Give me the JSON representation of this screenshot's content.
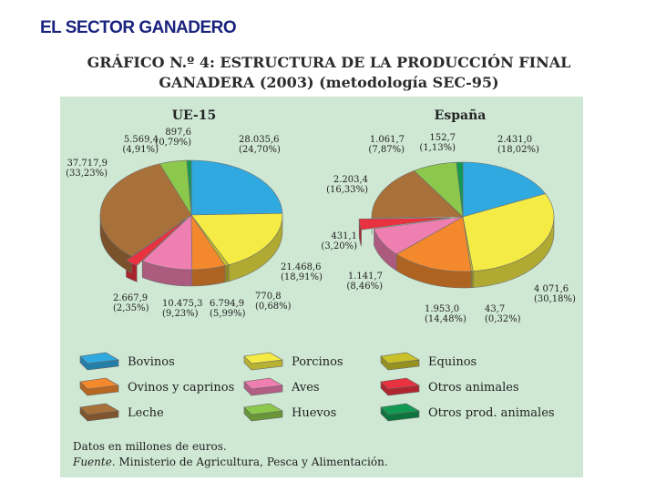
{
  "header": {
    "title": "EL SECTOR GANADERO"
  },
  "chart_data": {
    "type": "pie",
    "title_line1": "GRÁFICO N.º 4: ESTRUCTURA DE LA PRODUCCIÓN FINAL",
    "title_line2": "GANADERA (2003) (metodología SEC-95)",
    "categories": [
      "Bovinos",
      "Porcinos",
      "Equinos",
      "Ovinos y caprinos",
      "Aves",
      "Otros animales",
      "Leche",
      "Huevos",
      "Otros prod. animales"
    ],
    "colors": [
      "#2fa9e0",
      "#f4ec45",
      "#c9c12a",
      "#f3892c",
      "#ef7fb0",
      "#e9323f",
      "#a8713a",
      "#8cc84b",
      "#129a52"
    ],
    "pies": [
      {
        "name": "UE-15",
        "slices": [
          {
            "category": "Bovinos",
            "value": 28035.6,
            "label": "28.035,6",
            "pct": "(24,70%)"
          },
          {
            "category": "Porcinos",
            "value": 21468.6,
            "label": "21.468,6",
            "pct": "(18,91%)"
          },
          {
            "category": "Equinos",
            "value": 770.8,
            "label": "770,8",
            "pct": "(0,68%)"
          },
          {
            "category": "Ovinos y caprinos",
            "value": 6794.9,
            "label": "6.794,9",
            "pct": "(5,99%)"
          },
          {
            "category": "Aves",
            "value": 10475.3,
            "label": "10.475,3",
            "pct": "(9,23%)"
          },
          {
            "category": "Otros animales",
            "value": 2667.9,
            "label": "2.667,9",
            "pct": "(2,35%)"
          },
          {
            "category": "Leche",
            "value": 37717.9,
            "label": "37.717,9",
            "pct": "(33,23%)"
          },
          {
            "category": "Huevos",
            "value": 5569.4,
            "label": "5.569,4",
            "pct": "(4,91%)"
          },
          {
            "category": "Otros prod. animales",
            "value": 897.6,
            "label": "897,6",
            "pct": "(0,79%)"
          }
        ]
      },
      {
        "name": "España",
        "slices": [
          {
            "category": "Bovinos",
            "value": 2431.0,
            "label": "2.431,0",
            "pct": "(18,02%)"
          },
          {
            "category": "Porcinos",
            "value": 4071.6,
            "label": "4 071,6",
            "pct": "(30,18%)"
          },
          {
            "category": "Equinos",
            "value": 43.7,
            "label": "43,7",
            "pct": "(0,32%)"
          },
          {
            "category": "Ovinos y caprinos",
            "value": 1953.0,
            "label": "1.953,0",
            "pct": "(14,48%)"
          },
          {
            "category": "Aves",
            "value": 1141.7,
            "label": "1.141,7",
            "pct": "(8,46%)"
          },
          {
            "category": "Otros animales",
            "value": 431.1,
            "label": "431,1",
            "pct": "(3,20%)"
          },
          {
            "category": "Leche",
            "value": 2203.4,
            "label": "2.203,4",
            "pct": "(16,33%)"
          },
          {
            "category": "Huevos",
            "value": 1061.7,
            "label": "1.061,7",
            "pct": "(7,87%)"
          },
          {
            "category": "Otros prod. animales",
            "value": 152.7,
            "label": "152,7",
            "pct": "(1,13%)"
          }
        ]
      }
    ],
    "legend": [
      "Bovinos",
      "Porcinos",
      "Equinos",
      "Ovinos y caprinos",
      "Aves",
      "Otros animales",
      "Leche",
      "Huevos",
      "Otros prod. animales"
    ],
    "note": "Datos en millones de euros.",
    "source_label": "Fuente.",
    "source_text": "Ministerio de Agricultura, Pesca y Alimentación."
  }
}
